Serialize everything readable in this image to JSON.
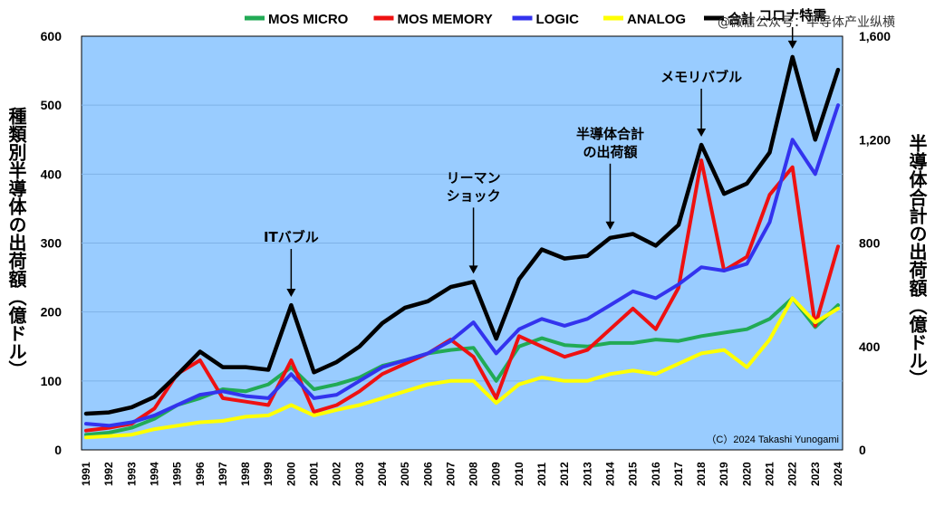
{
  "watermark": "@微信公众号：半导体产业纵横",
  "left_axis_label": "種類別半導体の出荷額（億ドル）",
  "right_axis_label": "半導体合計の出荷額（億ドル）",
  "chart_data": {
    "type": "line",
    "title": "",
    "xlabel": "",
    "ylabel_left": "種類別半導体の出荷額（億ドル）",
    "ylabel_right": "半導体合計の出荷額（億ドル）",
    "x": [
      "1991",
      "1992",
      "1993",
      "1994",
      "1995",
      "1996",
      "1997",
      "1998",
      "1999",
      "2000",
      "2001",
      "2002",
      "2003",
      "2004",
      "2005",
      "2006",
      "2007",
      "2008",
      "2009",
      "2010",
      "2011",
      "2012",
      "2013",
      "2014",
      "2015",
      "2016",
      "2017",
      "2018",
      "2019",
      "2020",
      "2021",
      "2022",
      "2023",
      "2024"
    ],
    "ylim_left": [
      0,
      600
    ],
    "yticks_left": [
      "0",
      "100",
      "200",
      "300",
      "400",
      "500",
      "600"
    ],
    "ylim_right": [
      0,
      1600
    ],
    "yticks_right": [
      "0",
      "400",
      "800",
      "1,200",
      "1,600"
    ],
    "series": [
      {
        "name": "MOS MICRO",
        "axis": "left",
        "color": "#22aa55",
        "values": [
          22,
          25,
          32,
          45,
          65,
          75,
          88,
          85,
          95,
          120,
          88,
          95,
          105,
          122,
          130,
          140,
          145,
          148,
          100,
          150,
          162,
          152,
          150,
          155,
          155,
          160,
          158,
          165,
          170,
          175,
          190,
          220,
          178,
          210
        ]
      },
      {
        "name": "MOS MEMORY",
        "axis": "left",
        "color": "#ee1111",
        "values": [
          28,
          32,
          38,
          60,
          110,
          130,
          75,
          70,
          65,
          130,
          55,
          65,
          85,
          110,
          125,
          140,
          160,
          135,
          75,
          165,
          150,
          135,
          145,
          175,
          205,
          175,
          235,
          420,
          260,
          280,
          370,
          410,
          180,
          295
        ]
      },
      {
        "name": "LOGIC",
        "axis": "left",
        "color": "#3333ee",
        "values": [
          38,
          35,
          40,
          50,
          65,
          80,
          85,
          78,
          75,
          110,
          75,
          80,
          100,
          120,
          130,
          140,
          158,
          185,
          140,
          175,
          190,
          180,
          190,
          210,
          230,
          220,
          240,
          265,
          260,
          270,
          330,
          450,
          400,
          500
        ]
      },
      {
        "name": "ANALOG",
        "axis": "left",
        "color": "#ffff00",
        "values": [
          18,
          20,
          22,
          30,
          35,
          40,
          42,
          48,
          50,
          65,
          50,
          58,
          65,
          75,
          85,
          95,
          100,
          100,
          68,
          95,
          105,
          100,
          100,
          110,
          115,
          110,
          125,
          140,
          145,
          120,
          160,
          220,
          185,
          205
        ]
      },
      {
        "name": "合計",
        "axis": "right",
        "color": "#000000",
        "values": [
          140,
          145,
          165,
          205,
          290,
          380,
          320,
          320,
          310,
          560,
          300,
          340,
          400,
          490,
          550,
          575,
          630,
          650,
          430,
          660,
          775,
          740,
          750,
          820,
          835,
          790,
          870,
          1180,
          990,
          1030,
          1150,
          1520,
          1200,
          1470
        ]
      }
    ],
    "legend": [
      "MOS MICRO",
      "MOS MEMORY",
      "LOGIC",
      "ANALOG",
      "合計"
    ],
    "legend_position": "top",
    "credit": "（C）2024 Takashi Yunogami",
    "annotations": [
      {
        "label": "ITバブル",
        "year": "2000"
      },
      {
        "label": "リーマン",
        "label2": "ショック",
        "year": "2008"
      },
      {
        "label": "半導体合計",
        "label2": "の出荷額",
        "year": "2014"
      },
      {
        "label": "メモリバブル",
        "year": "2018"
      },
      {
        "label": "コロナ特需",
        "year": "2022"
      }
    ]
  }
}
